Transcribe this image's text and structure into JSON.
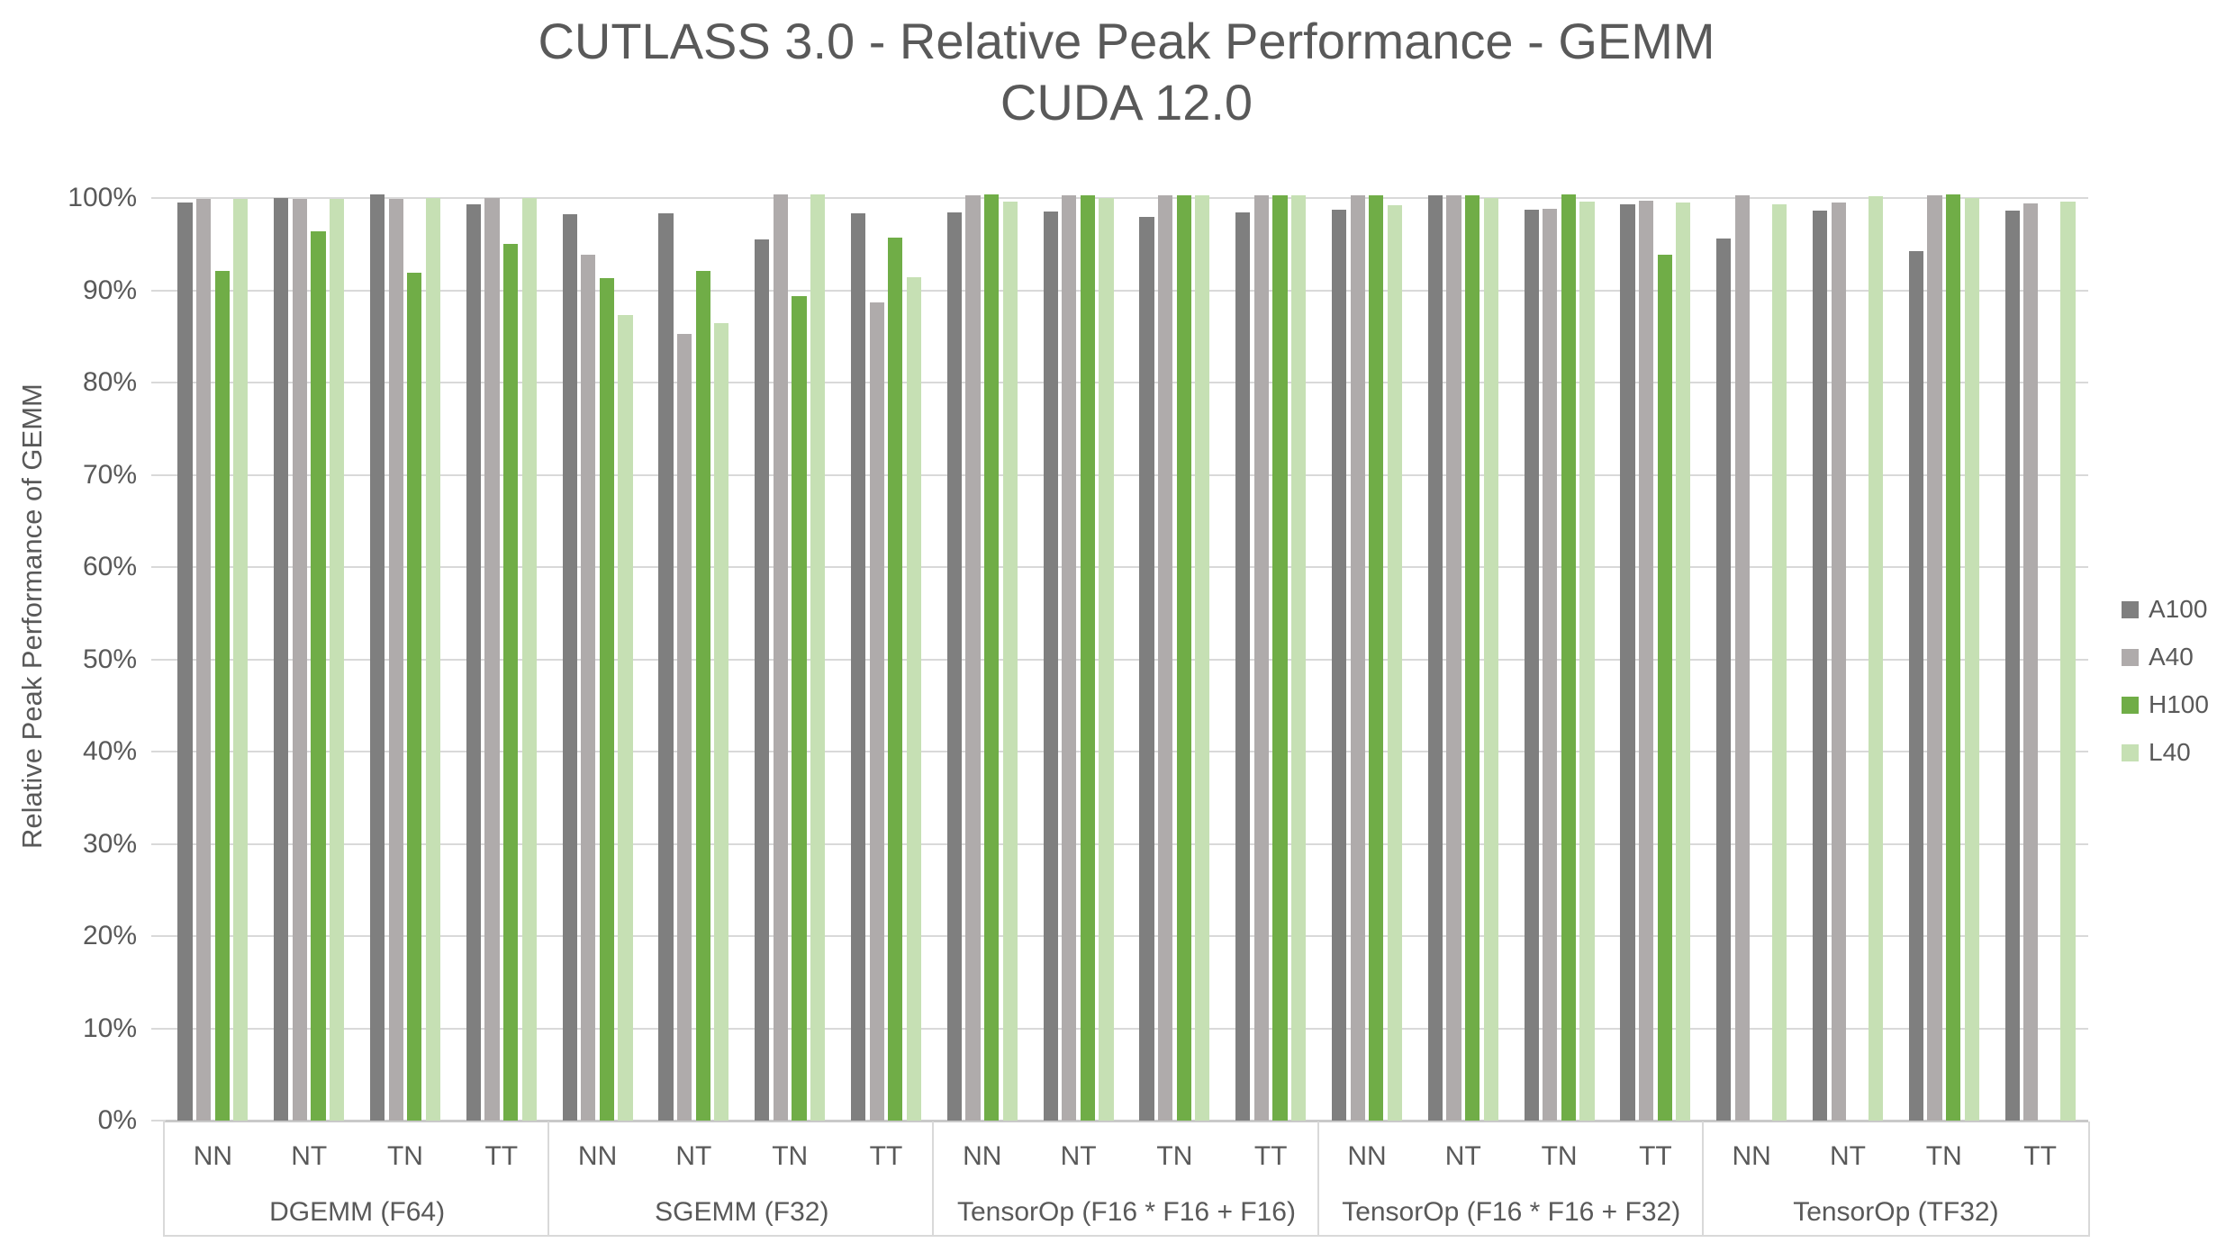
{
  "title": {
    "line1": "CUTLASS 3.0 - Relative Peak Performance - GEMM",
    "line2": "CUDA 12.0"
  },
  "y_axis": {
    "title": "Relative Peak Performance of GEMM",
    "tick_labels": [
      "0%",
      "10%",
      "20%",
      "30%",
      "40%",
      "50%",
      "60%",
      "70%",
      "80%",
      "90%",
      "100%"
    ]
  },
  "legend": {
    "position": "right",
    "items": [
      {
        "label": "A100",
        "color": "#7f7f7f"
      },
      {
        "label": "A40",
        "color": "#afabab"
      },
      {
        "label": "H100",
        "color": "#70ad47"
      },
      {
        "label": "L40",
        "color": "#c6e0b4"
      }
    ]
  },
  "chart_data": {
    "type": "bar",
    "title": "CUTLASS 3.0 - Relative Peak Performance - GEMM",
    "subtitle": "CUDA 12.0",
    "xlabel": "",
    "ylabel": "Relative Peak Performance of GEMM",
    "unit": "percent",
    "ylim": [
      0,
      102
    ],
    "y_major_step": 10,
    "grid": true,
    "legend_position": "right",
    "group_labels": [
      "DGEMM (F64)",
      "SGEMM (F32)",
      "TensorOp (F16 * F16 + F16)",
      "TensorOp (F16 * F16 + F32)",
      "TensorOp (TF32)"
    ],
    "categories_per_group": [
      "NN",
      "NT",
      "TN",
      "TT"
    ],
    "series": [
      {
        "name": "A100",
        "color": "#7f7f7f",
        "values_by_group": [
          [
            99.5,
            100.0,
            100.4,
            99.3
          ],
          [
            98.2,
            98.3,
            95.5,
            98.3
          ],
          [
            98.4,
            98.5,
            98.0,
            98.4
          ],
          [
            98.7,
            100.3,
            98.7,
            99.3
          ],
          [
            95.6,
            98.6,
            94.2,
            98.6
          ]
        ]
      },
      {
        "name": "A40",
        "color": "#afabab",
        "values_by_group": [
          [
            99.9,
            99.9,
            99.9,
            100.0
          ],
          [
            93.9,
            85.3,
            100.4,
            88.7
          ],
          [
            100.3,
            100.3,
            100.3,
            100.3
          ],
          [
            100.3,
            100.3,
            98.8,
            99.7
          ],
          [
            100.3,
            99.5,
            100.3,
            99.4
          ]
        ]
      },
      {
        "name": "H100",
        "color": "#70ad47",
        "values_by_group": [
          [
            92.1,
            96.4,
            91.9,
            95.0
          ],
          [
            91.3,
            92.1,
            89.4,
            95.7
          ],
          [
            100.4,
            100.3,
            100.3,
            100.3
          ],
          [
            100.3,
            100.3,
            100.4,
            93.9
          ],
          [
            null,
            null,
            100.4,
            null
          ]
        ]
      },
      {
        "name": "L40",
        "color": "#c6e0b4",
        "values_by_group": [
          [
            99.9,
            99.9,
            100.0,
            100.0
          ],
          [
            87.3,
            86.4,
            100.4,
            91.4
          ],
          [
            99.6,
            100.0,
            100.3,
            100.3
          ],
          [
            99.2,
            100.0,
            99.6,
            99.5
          ],
          [
            99.3,
            100.2,
            100.0,
            99.6
          ]
        ]
      }
    ]
  }
}
